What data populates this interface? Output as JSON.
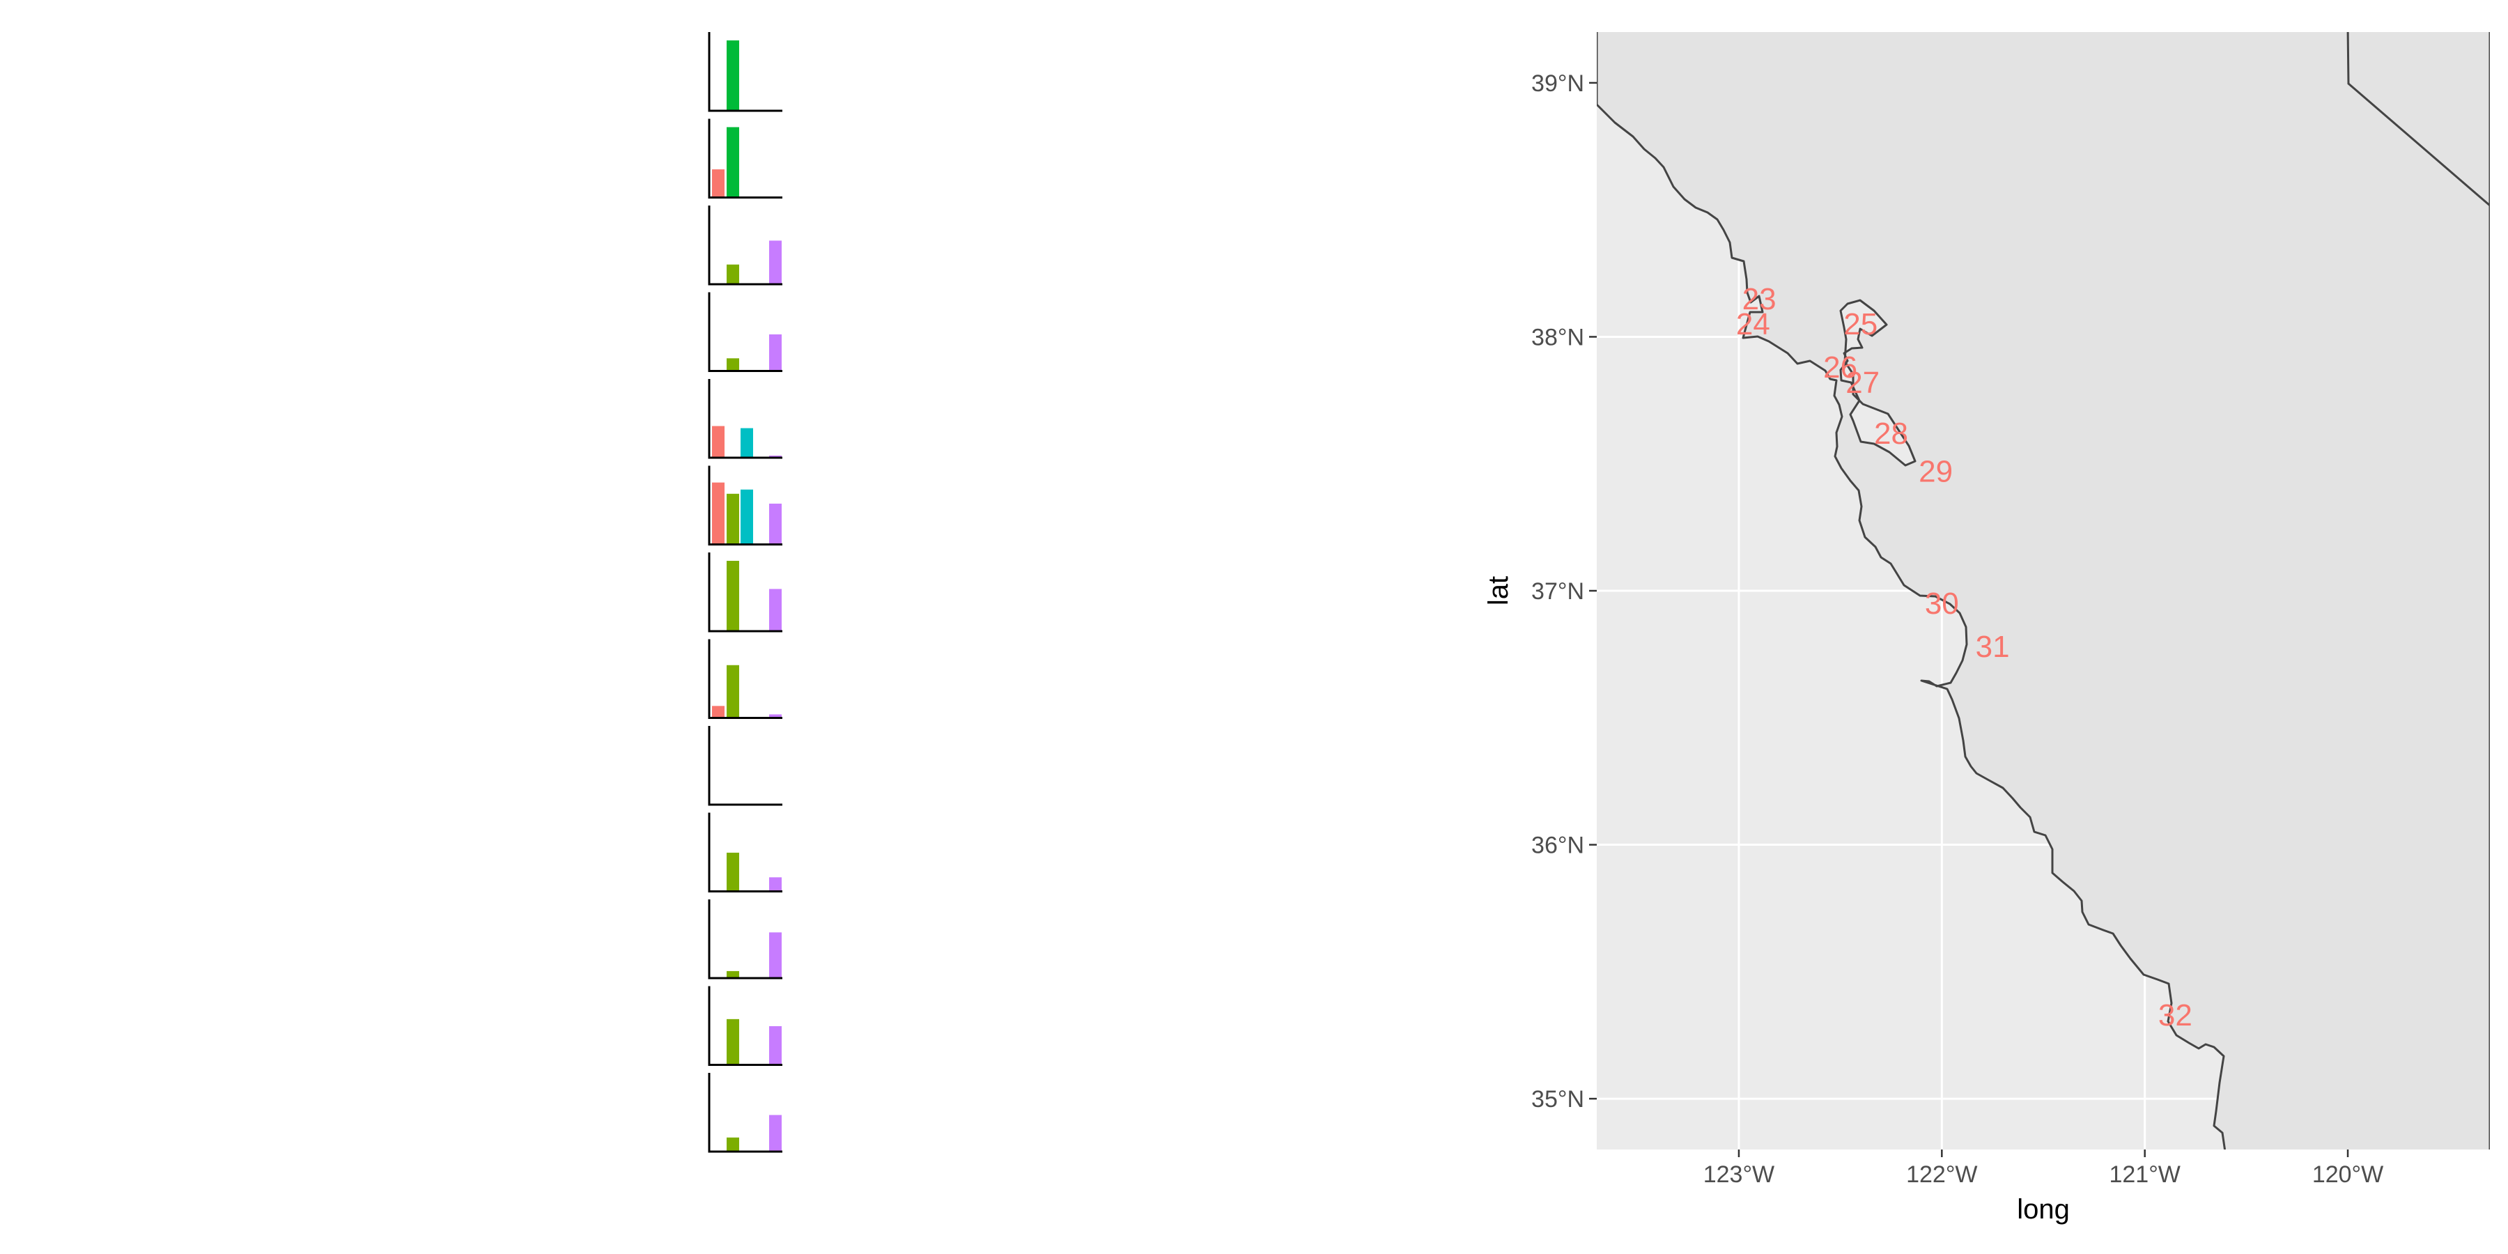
{
  "colors": {
    "series_a": "#F8766D",
    "series_b": "#7CAE00",
    "series_b_alt": "#00BA38",
    "series_c": "#00BFC4",
    "series_d": "#C77CFF",
    "label": "#F8766D",
    "panel_bg": "#EBEBEB",
    "land_fill": "#E3E3E3",
    "coast": "#444444"
  },
  "chart_data": [
    {
      "type": "bar",
      "title": "",
      "xlabel": "",
      "ylabel": "",
      "note": "Thirteen stacked mini bar panels, top to bottom; each panel has four category slots (no tick labels shown).",
      "panels": [
        {
          "values": [
            0,
            1.0,
            0,
            0
          ],
          "colors": [
            "series_a",
            "series_b_alt",
            "series_c",
            "series_d"
          ]
        },
        {
          "values": [
            0.4,
            1.0,
            0,
            0
          ],
          "colors": [
            "series_a",
            "series_b_alt",
            "series_c",
            "series_d"
          ]
        },
        {
          "values": [
            0,
            0.28,
            0,
            0.62
          ],
          "colors": [
            "series_a",
            "series_b",
            "series_c",
            "series_d"
          ]
        },
        {
          "values": [
            0,
            0.18,
            0,
            0.52
          ],
          "colors": [
            "series_a",
            "series_b",
            "series_c",
            "series_d"
          ]
        },
        {
          "values": [
            0.45,
            0,
            0.42,
            0.03
          ],
          "colors": [
            "series_a",
            "series_b",
            "series_c",
            "series_d"
          ]
        },
        {
          "values": [
            0.88,
            0.72,
            0.78,
            0.58
          ],
          "colors": [
            "series_a",
            "series_b",
            "series_c",
            "series_d"
          ]
        },
        {
          "values": [
            0,
            1.0,
            0,
            0.6
          ],
          "colors": [
            "series_a",
            "series_b",
            "series_c",
            "series_d"
          ]
        },
        {
          "values": [
            0.17,
            0.75,
            0,
            0.05
          ],
          "colors": [
            "series_a",
            "series_b",
            "series_c",
            "series_d"
          ]
        },
        {
          "values": [
            0,
            0,
            0,
            0
          ],
          "colors": [
            "series_a",
            "series_b",
            "series_c",
            "series_d"
          ]
        },
        {
          "values": [
            0,
            0.55,
            0,
            0.2
          ],
          "colors": [
            "series_a",
            "series_b",
            "series_c",
            "series_d"
          ]
        },
        {
          "values": [
            0,
            0.1,
            0,
            0.65
          ],
          "colors": [
            "series_a",
            "series_b",
            "series_c",
            "series_d"
          ]
        },
        {
          "values": [
            0,
            0.65,
            0,
            0.55
          ],
          "colors": [
            "series_a",
            "series_b",
            "series_c",
            "series_d"
          ]
        },
        {
          "values": [
            0,
            0.2,
            0,
            0.52
          ],
          "colors": [
            "series_a",
            "series_b",
            "series_c",
            "series_d"
          ]
        }
      ]
    },
    {
      "type": "map",
      "title": "",
      "xlabel": "long",
      "ylabel": "lat",
      "xlim": [
        -123.7,
        -119.3
      ],
      "ylim": [
        34.8,
        39.2
      ],
      "x_ticks": [
        -123,
        -122,
        -121,
        -120
      ],
      "x_tick_labels": [
        "123°W",
        "122°W",
        "121°W",
        "120°W"
      ],
      "y_ticks": [
        35,
        36,
        37,
        38,
        39
      ],
      "y_tick_labels": [
        "35°N",
        "36°N",
        "37°N",
        "38°N",
        "39°N"
      ],
      "grid": true,
      "labels": [
        {
          "text": "23",
          "lon": -122.9,
          "lat": 38.15
        },
        {
          "text": "24",
          "lon": -122.93,
          "lat": 38.05
        },
        {
          "text": "25",
          "lon": -122.4,
          "lat": 38.05
        },
        {
          "text": "26",
          "lon": -122.5,
          "lat": 37.88
        },
        {
          "text": "27",
          "lon": -122.39,
          "lat": 37.82
        },
        {
          "text": "28",
          "lon": -122.25,
          "lat": 37.62
        },
        {
          "text": "29",
          "lon": -122.03,
          "lat": 37.47
        },
        {
          "text": "30",
          "lon": -122.0,
          "lat": 36.95
        },
        {
          "text": "31",
          "lon": -121.75,
          "lat": 36.78
        },
        {
          "text": "32",
          "lon": -120.85,
          "lat": 35.33
        }
      ]
    }
  ]
}
